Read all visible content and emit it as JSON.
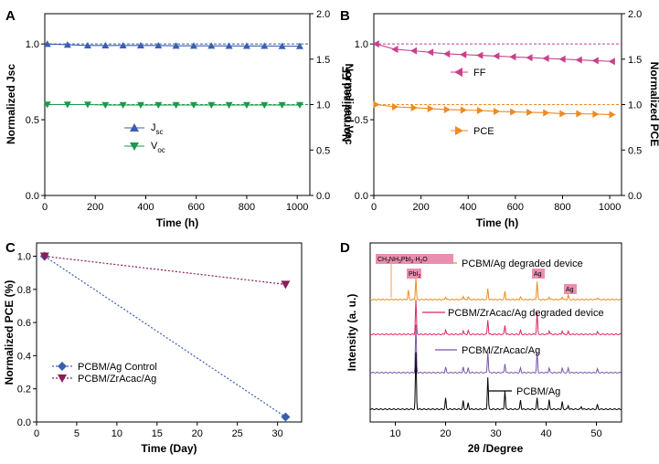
{
  "chart_data": [
    {
      "panel": "A",
      "type": "line",
      "x": [
        10,
        90,
        170,
        240,
        310,
        380,
        450,
        520,
        590,
        660,
        730,
        800,
        870,
        940,
        1010
      ],
      "xlabel": "Time (h)",
      "xlim": [
        0,
        1050
      ],
      "ylabel": "Normalized Jsc",
      "ylim": [
        0,
        1.2
      ],
      "y2label": "Normalized Voc",
      "y2lim": [
        0,
        2.0
      ],
      "xticks": [
        "0",
        "200",
        "400",
        "600",
        "800",
        "1000"
      ],
      "yticks": [
        "0.0",
        "0.5",
        "1.0"
      ],
      "y2ticks": [
        "0.0",
        "0.5",
        "1.0",
        "1.5",
        "2.0"
      ],
      "series": [
        {
          "name_main": "J",
          "name_sub": "sc",
          "axis": "left",
          "marker": "triangle-up",
          "color": "#3a5fb0",
          "values": [
            1.0,
            0.995,
            0.99,
            0.99,
            0.99,
            0.99,
            0.99,
            0.988,
            0.988,
            0.988,
            0.987,
            0.987,
            0.987,
            0.986,
            0.986
          ]
        },
        {
          "name_main": "V",
          "name_sub": "oc",
          "axis": "right",
          "marker": "triangle-down",
          "color": "#1a9a4a",
          "values": [
            1.0,
            1.0,
            1.0,
            0.995,
            0.995,
            0.995,
            0.995,
            0.995,
            0.995,
            0.995,
            0.995,
            0.995,
            0.995,
            0.995,
            0.995
          ]
        }
      ],
      "reference_lines": [
        {
          "axis": "left",
          "value": 1.0
        },
        {
          "axis": "right",
          "value": 1.0
        }
      ],
      "legend_position": "center-left"
    },
    {
      "panel": "B",
      "type": "line",
      "x": [
        10,
        90,
        170,
        240,
        310,
        380,
        450,
        520,
        590,
        660,
        730,
        800,
        870,
        940,
        1010
      ],
      "xlabel": "Time (h)",
      "xlim": [
        0,
        1050
      ],
      "ylabel": "Normalized FF",
      "ylim": [
        0,
        1.2
      ],
      "y2label": "Normalized PCE",
      "y2lim": [
        0,
        2.0
      ],
      "xticks": [
        "0",
        "200",
        "400",
        "600",
        "800",
        "1000"
      ],
      "yticks": [
        "0.0",
        "0.5",
        "1.0"
      ],
      "y2ticks": [
        "0.0",
        "0.5",
        "1.0",
        "1.5",
        "2.0"
      ],
      "series": [
        {
          "name": "FF",
          "axis": "left",
          "marker": "triangle-left",
          "color": "#c8418b",
          "values": [
            1.0,
            0.965,
            0.955,
            0.945,
            0.935,
            0.93,
            0.925,
            0.92,
            0.915,
            0.91,
            0.905,
            0.9,
            0.895,
            0.89,
            0.885
          ]
        },
        {
          "name": "PCE",
          "axis": "right",
          "marker": "triangle-right",
          "color": "#ef8a22",
          "values": [
            1.0,
            0.975,
            0.965,
            0.955,
            0.945,
            0.94,
            0.935,
            0.925,
            0.92,
            0.915,
            0.91,
            0.9,
            0.9,
            0.895,
            0.89
          ]
        }
      ],
      "reference_lines": [
        {
          "axis": "left",
          "value": 1.0,
          "color": "#c8418b"
        },
        {
          "axis": "right",
          "value": 1.0,
          "color": "#ef8a22"
        }
      ],
      "legend_position": "center-right"
    },
    {
      "panel": "C",
      "type": "line",
      "xlabel": "Time (Day)",
      "xlim": [
        0,
        33
      ],
      "ylabel": "Normalized PCE (%)",
      "ylim": [
        0,
        1.08
      ],
      "xticks": [
        "0",
        "5",
        "10",
        "15",
        "20",
        "25",
        "30"
      ],
      "yticks": [
        "0.0",
        "0.2",
        "0.4",
        "0.6",
        "0.8",
        "1.0"
      ],
      "series": [
        {
          "name": "PCBM/Ag Control",
          "marker": "diamond",
          "color": "#3a5fb0",
          "x": [
            1,
            31
          ],
          "values": [
            1.0,
            0.03
          ]
        },
        {
          "name": "PCBM/ZrAcac/Ag",
          "marker": "triangle-down",
          "color": "#8a1d5a",
          "x": [
            1,
            31
          ],
          "values": [
            1.0,
            0.83
          ]
        }
      ],
      "legend_position": "bottom-left"
    },
    {
      "panel": "D",
      "type": "line",
      "xlabel": "2θ /Degree",
      "xlim": [
        5,
        55
      ],
      "ylabel": "Intensity (a. u.)",
      "xticks": [
        "10",
        "20",
        "30",
        "40",
        "50"
      ],
      "series": [
        {
          "name": "PCBM/Ag degraded device",
          "color": "#ef8a22"
        },
        {
          "name": "PCBM/ZrAcac/Ag degraded device",
          "color": "#e2265e"
        },
        {
          "name": "PCBM/ZrAcac/Ag",
          "color": "#7b55a8"
        },
        {
          "name": "PCBM/Ag",
          "color": "#000000"
        }
      ],
      "annotations": [
        {
          "label_pre": "CH",
          "label_sub1": "3",
          "label_mid1": "NH",
          "label_sub2": "3",
          "label_mid2": "PbI",
          "label_sub3": "3",
          "label_post": "·H",
          "label_sub4": "2",
          "label_end": "O"
        },
        {
          "label": "PbI",
          "label_sub": "2"
        },
        {
          "label": "Ag"
        },
        {
          "label": "Ag"
        }
      ]
    }
  ],
  "panel_labels": [
    "A",
    "B",
    "C",
    "D"
  ]
}
